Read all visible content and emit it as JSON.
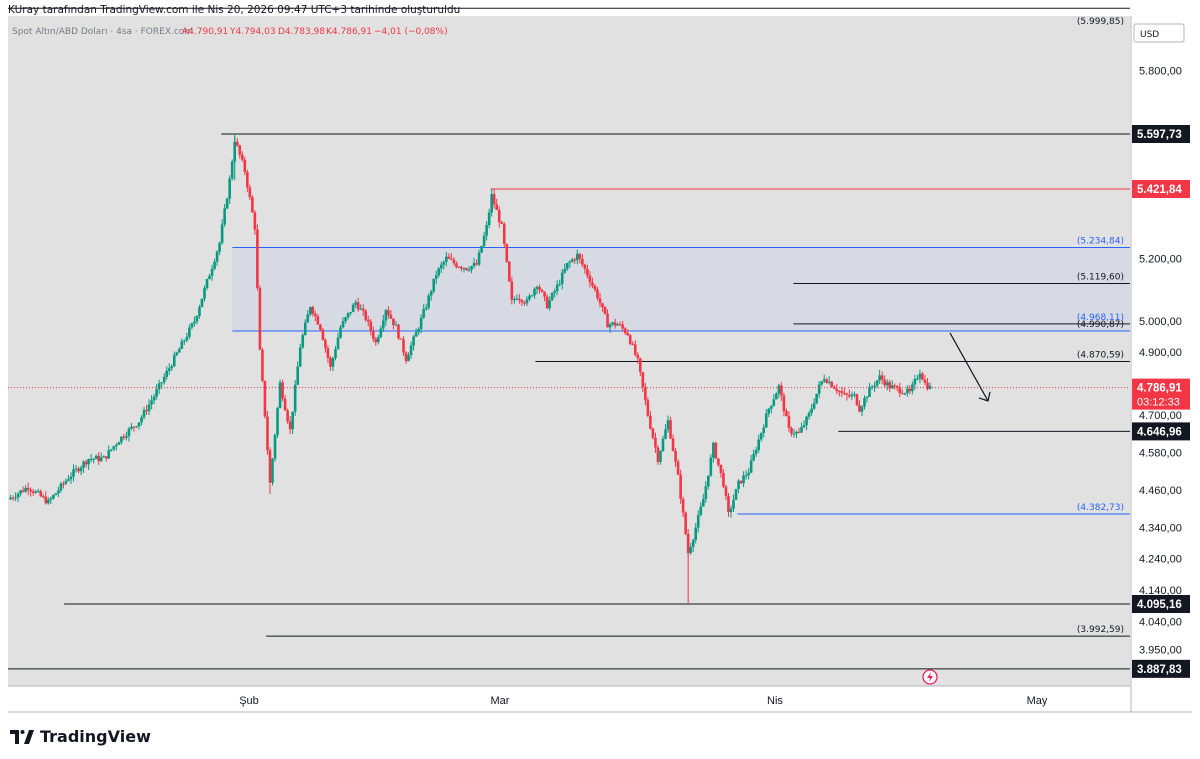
{
  "header": {
    "attribution": "KUray tarafından TradingView.com ile Nis 20, 2026 09:47 UTC+3 tarihinde oluşturuldu"
  },
  "legend": {
    "symbol": "Spot Altın/ABD Doları · 4sa · FOREX.com",
    "open": "A4.790,91",
    "high": "Y4.794,03",
    "low": "D4.783,98",
    "close": "K4.786,91",
    "change": "−4,01 (−0,08%)"
  },
  "currency": "USD",
  "brand": "TradingView",
  "colors": {
    "up": "#089981",
    "down": "#f23645",
    "plot_bg": "#e1e1e1",
    "zone": "rgba(41,98,255,0.05)",
    "blue_line": "#2962ff",
    "red_line": "#f23645",
    "black_line": "#131722"
  },
  "chart_data": {
    "type": "candlestick",
    "title": "Spot Altın/ABD Doları · 4sa · FOREX.com",
    "x_ticks": [
      "Şub",
      "Mar",
      "Nis",
      "May"
    ],
    "y_ticks": [
      "5.800,00",
      "5.200,00",
      "5.000,00",
      "4.900,00",
      "4.700,00",
      "4.580,00",
      "4.460,00",
      "4.340,00",
      "4.240,00",
      "4.140,00",
      "4.040,00",
      "3.950,00"
    ],
    "top_partial_label": "(5.999,85)",
    "current_price": {
      "value": 4786.91,
      "label": "4.786,91",
      "countdown": "03:12:33"
    },
    "price_path": [
      [
        0,
        4430
      ],
      [
        4,
        4470
      ],
      [
        8,
        4420
      ],
      [
        12,
        4500
      ],
      [
        16,
        4560
      ],
      [
        19,
        4560
      ],
      [
        22,
        4620
      ],
      [
        26,
        4680
      ],
      [
        29,
        4760
      ],
      [
        33,
        4880
      ],
      [
        37,
        5000
      ],
      [
        40,
        5150
      ],
      [
        42,
        5250
      ],
      [
        44,
        5450
      ],
      [
        45,
        5580
      ],
      [
        47,
        5480
      ],
      [
        49,
        5300
      ],
      [
        50,
        4900
      ],
      [
        51,
        4700
      ],
      [
        52,
        4480
      ],
      [
        54,
        4800
      ],
      [
        56,
        4650
      ],
      [
        58,
        4920
      ],
      [
        60,
        5050
      ],
      [
        62,
        4980
      ],
      [
        64,
        4850
      ],
      [
        66,
        4980
      ],
      [
        69,
        5060
      ],
      [
        71,
        5010
      ],
      [
        73,
        4930
      ],
      [
        75,
        5040
      ],
      [
        77,
        4980
      ],
      [
        79,
        4880
      ],
      [
        81,
        4960
      ],
      [
        83,
        5050
      ],
      [
        85,
        5150
      ],
      [
        87,
        5200
      ],
      [
        89,
        5180
      ],
      [
        91,
        5170
      ],
      [
        93,
        5180
      ],
      [
        95,
        5300
      ],
      [
        96,
        5400
      ],
      [
        98,
        5300
      ],
      [
        100,
        5060
      ],
      [
        101,
        5080
      ],
      [
        103,
        5060
      ],
      [
        105,
        5120
      ],
      [
        107,
        5050
      ],
      [
        109,
        5110
      ],
      [
        111,
        5180
      ],
      [
        113,
        5210
      ],
      [
        115,
        5150
      ],
      [
        117,
        5080
      ],
      [
        119,
        4990
      ],
      [
        121,
        4990
      ],
      [
        123,
        4960
      ],
      [
        125,
        4870
      ],
      [
        127,
        4700
      ],
      [
        129,
        4560
      ],
      [
        131,
        4680
      ],
      [
        133,
        4500
      ],
      [
        135,
        4260
      ],
      [
        136,
        4310
      ],
      [
        138,
        4430
      ],
      [
        140,
        4600
      ],
      [
        142,
        4480
      ],
      [
        143,
        4380
      ],
      [
        145,
        4480
      ],
      [
        147,
        4520
      ],
      [
        149,
        4620
      ],
      [
        151,
        4720
      ],
      [
        153,
        4790
      ],
      [
        155,
        4650
      ],
      [
        157,
        4640
      ],
      [
        159,
        4700
      ],
      [
        161,
        4790
      ],
      [
        162,
        4820
      ],
      [
        164,
        4790
      ],
      [
        166,
        4760
      ],
      [
        168,
        4760
      ],
      [
        169,
        4720
      ],
      [
        171,
        4780
      ],
      [
        173,
        4820
      ],
      [
        175,
        4790
      ],
      [
        177,
        4780
      ],
      [
        179,
        4770
      ],
      [
        181,
        4840
      ],
      [
        182,
        4800
      ],
      [
        183,
        4786.91
      ]
    ],
    "levels": [
      {
        "label": "(5.999,85)",
        "value": 5999.85,
        "style": "black",
        "start_frac": 0.0
      },
      {
        "label": "5.597,73",
        "value": 5597.73,
        "style": "black-boxed",
        "start_frac": 0.19
      },
      {
        "label": "5.421,84",
        "value": 5421.84,
        "style": "red-boxed",
        "start_frac": 0.43
      },
      {
        "label": "(5.234,84)",
        "value": 5234.84,
        "style": "blue",
        "start_frac": 0.2
      },
      {
        "label": "(5.119,60)",
        "value": 5119.6,
        "style": "black",
        "start_frac": 0.7
      },
      {
        "label": "(4.968,11)",
        "value": 4968.11,
        "style": "blue",
        "start_frac": 0.2
      },
      {
        "label": "(4.990,87)",
        "value": 4990.87,
        "style": "black",
        "start_frac": 0.7
      },
      {
        "label": "(4.870,59)",
        "value": 4870.59,
        "style": "black",
        "start_frac": 0.47
      },
      {
        "label": "4.646,96",
        "value": 4646.96,
        "style": "black-boxed",
        "start_frac": 0.74
      },
      {
        "label": "(4.382,73)",
        "value": 4382.73,
        "style": "blue",
        "start_frac": 0.65
      },
      {
        "label": "4.095,16",
        "value": 4095.16,
        "style": "black-boxed",
        "start_frac": 0.05
      },
      {
        "label": "(3.992,59)",
        "value": 3992.59,
        "style": "black",
        "start_frac": 0.23
      },
      {
        "label": "3.887,83",
        "value": 3887.83,
        "style": "black-boxed",
        "start_frac": 0.0
      }
    ],
    "zone": {
      "top": 5234.84,
      "bottom": 4968.11
    },
    "forecast_arrow": {
      "from": 4968.11,
      "to": 4770
    }
  }
}
